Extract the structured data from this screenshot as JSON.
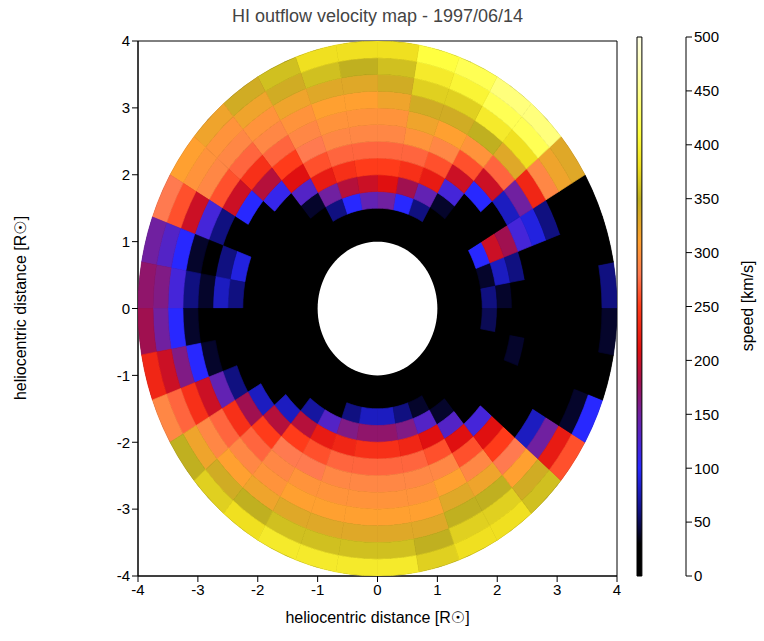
{
  "chart_data": {
    "type": "polar_heatmap",
    "title": "HI outflow velocity map - 1997/06/14",
    "x_label": "heliocentric distance [R☉]",
    "y_label": "heliocentric distance [R☉]",
    "xlim": [
      -4,
      4
    ],
    "ylim": [
      -4,
      4
    ],
    "xticks": [
      -4,
      -3,
      -2,
      -1,
      0,
      1,
      2,
      3,
      4
    ],
    "yticks": [
      -4,
      -3,
      -2,
      -1,
      0,
      1,
      2,
      3,
      4
    ],
    "cells": {
      "angle_edges": [
        0,
        10,
        20,
        30,
        40,
        50,
        60,
        70,
        80,
        90,
        100,
        110,
        120,
        130,
        140,
        150,
        160,
        170,
        180,
        190,
        200,
        210,
        220,
        230,
        240,
        250,
        260,
        270,
        280,
        290,
        300,
        310,
        320,
        330,
        340,
        350,
        360
      ],
      "radius_edges": [
        1.5,
        1.75,
        2.0,
        2.25,
        2.5,
        2.75,
        3.0,
        3.25,
        3.5,
        3.75,
        4.0
      ],
      "values": [
        [
          0,
          60,
          40,
          0,
          0,
          0,
          0,
          0,
          20,
          60
        ],
        [
          0,
          40,
          80,
          60,
          30,
          0,
          0,
          0,
          0,
          0
        ],
        [
          30,
          100,
          200,
          180,
          120,
          90,
          60,
          30,
          0,
          0
        ],
        [
          0,
          0,
          0,
          20,
          80,
          150,
          230,
          290,
          320,
          330
        ],
        [
          0,
          0,
          30,
          100,
          200,
          270,
          330,
          380,
          420,
          440
        ],
        [
          0,
          40,
          120,
          200,
          260,
          300,
          350,
          390,
          420,
          440
        ],
        [
          60,
          140,
          220,
          260,
          290,
          310,
          340,
          370,
          400,
          420
        ],
        [
          100,
          180,
          240,
          270,
          300,
          320,
          340,
          370,
          390,
          410
        ],
        [
          150,
          210,
          250,
          270,
          290,
          300,
          320,
          340,
          360,
          380
        ],
        [
          140,
          200,
          250,
          270,
          290,
          300,
          310,
          330,
          350,
          380
        ],
        [
          100,
          190,
          240,
          270,
          290,
          300,
          310,
          330,
          360,
          380
        ],
        [
          60,
          150,
          220,
          260,
          280,
          290,
          300,
          320,
          340,
          360
        ],
        [
          0,
          40,
          130,
          210,
          250,
          270,
          290,
          300,
          320,
          340
        ],
        [
          0,
          0,
          30,
          110,
          190,
          240,
          270,
          290,
          300,
          320
        ],
        [
          0,
          0,
          0,
          20,
          100,
          200,
          260,
          290,
          300,
          310
        ],
        [
          0,
          0,
          0,
          0,
          20,
          60,
          120,
          200,
          260,
          280
        ],
        [
          0,
          0,
          30,
          90,
          60,
          20,
          40,
          100,
          130,
          150
        ],
        [
          0,
          0,
          20,
          60,
          80,
          40,
          60,
          120,
          160,
          170
        ],
        [
          0,
          0,
          0,
          0,
          0,
          0,
          40,
          100,
          150,
          180
        ],
        [
          0,
          0,
          0,
          0,
          0,
          40,
          100,
          160,
          200,
          230
        ],
        [
          0,
          0,
          0,
          0,
          60,
          140,
          200,
          240,
          270,
          290
        ],
        [
          0,
          0,
          0,
          80,
          180,
          240,
          270,
          290,
          320,
          350
        ],
        [
          0,
          0,
          80,
          190,
          250,
          270,
          290,
          310,
          340,
          370
        ],
        [
          0,
          70,
          190,
          250,
          280,
          290,
          300,
          320,
          350,
          380
        ],
        [
          30,
          130,
          220,
          260,
          280,
          300,
          310,
          330,
          360,
          390
        ],
        [
          60,
          160,
          230,
          270,
          290,
          300,
          310,
          330,
          360,
          390
        ],
        [
          80,
          170,
          240,
          270,
          290,
          300,
          310,
          330,
          360,
          390
        ],
        [
          80,
          170,
          240,
          270,
          290,
          300,
          310,
          330,
          360,
          390
        ],
        [
          60,
          160,
          230,
          270,
          290,
          300,
          310,
          330,
          350,
          370
        ],
        [
          40,
          130,
          210,
          260,
          290,
          310,
          330,
          350,
          370,
          380
        ],
        [
          0,
          40,
          130,
          210,
          260,
          290,
          320,
          350,
          370,
          380
        ],
        [
          0,
          0,
          30,
          120,
          210,
          250,
          280,
          310,
          340,
          360
        ],
        [
          0,
          0,
          0,
          0,
          0,
          20,
          80,
          150,
          220,
          260
        ],
        [
          0,
          0,
          0,
          0,
          0,
          0,
          0,
          0,
          40,
          100
        ],
        [
          0,
          0,
          20,
          40,
          10,
          0,
          0,
          0,
          0,
          0
        ],
        [
          0,
          50,
          30,
          0,
          0,
          0,
          0,
          0,
          0,
          40
        ]
      ]
    },
    "colorbar": {
      "label": "speed [km/s]",
      "range": [
        0,
        500
      ],
      "ticks": [
        0,
        50,
        100,
        150,
        200,
        250,
        300,
        350,
        400,
        450,
        500
      ]
    }
  }
}
